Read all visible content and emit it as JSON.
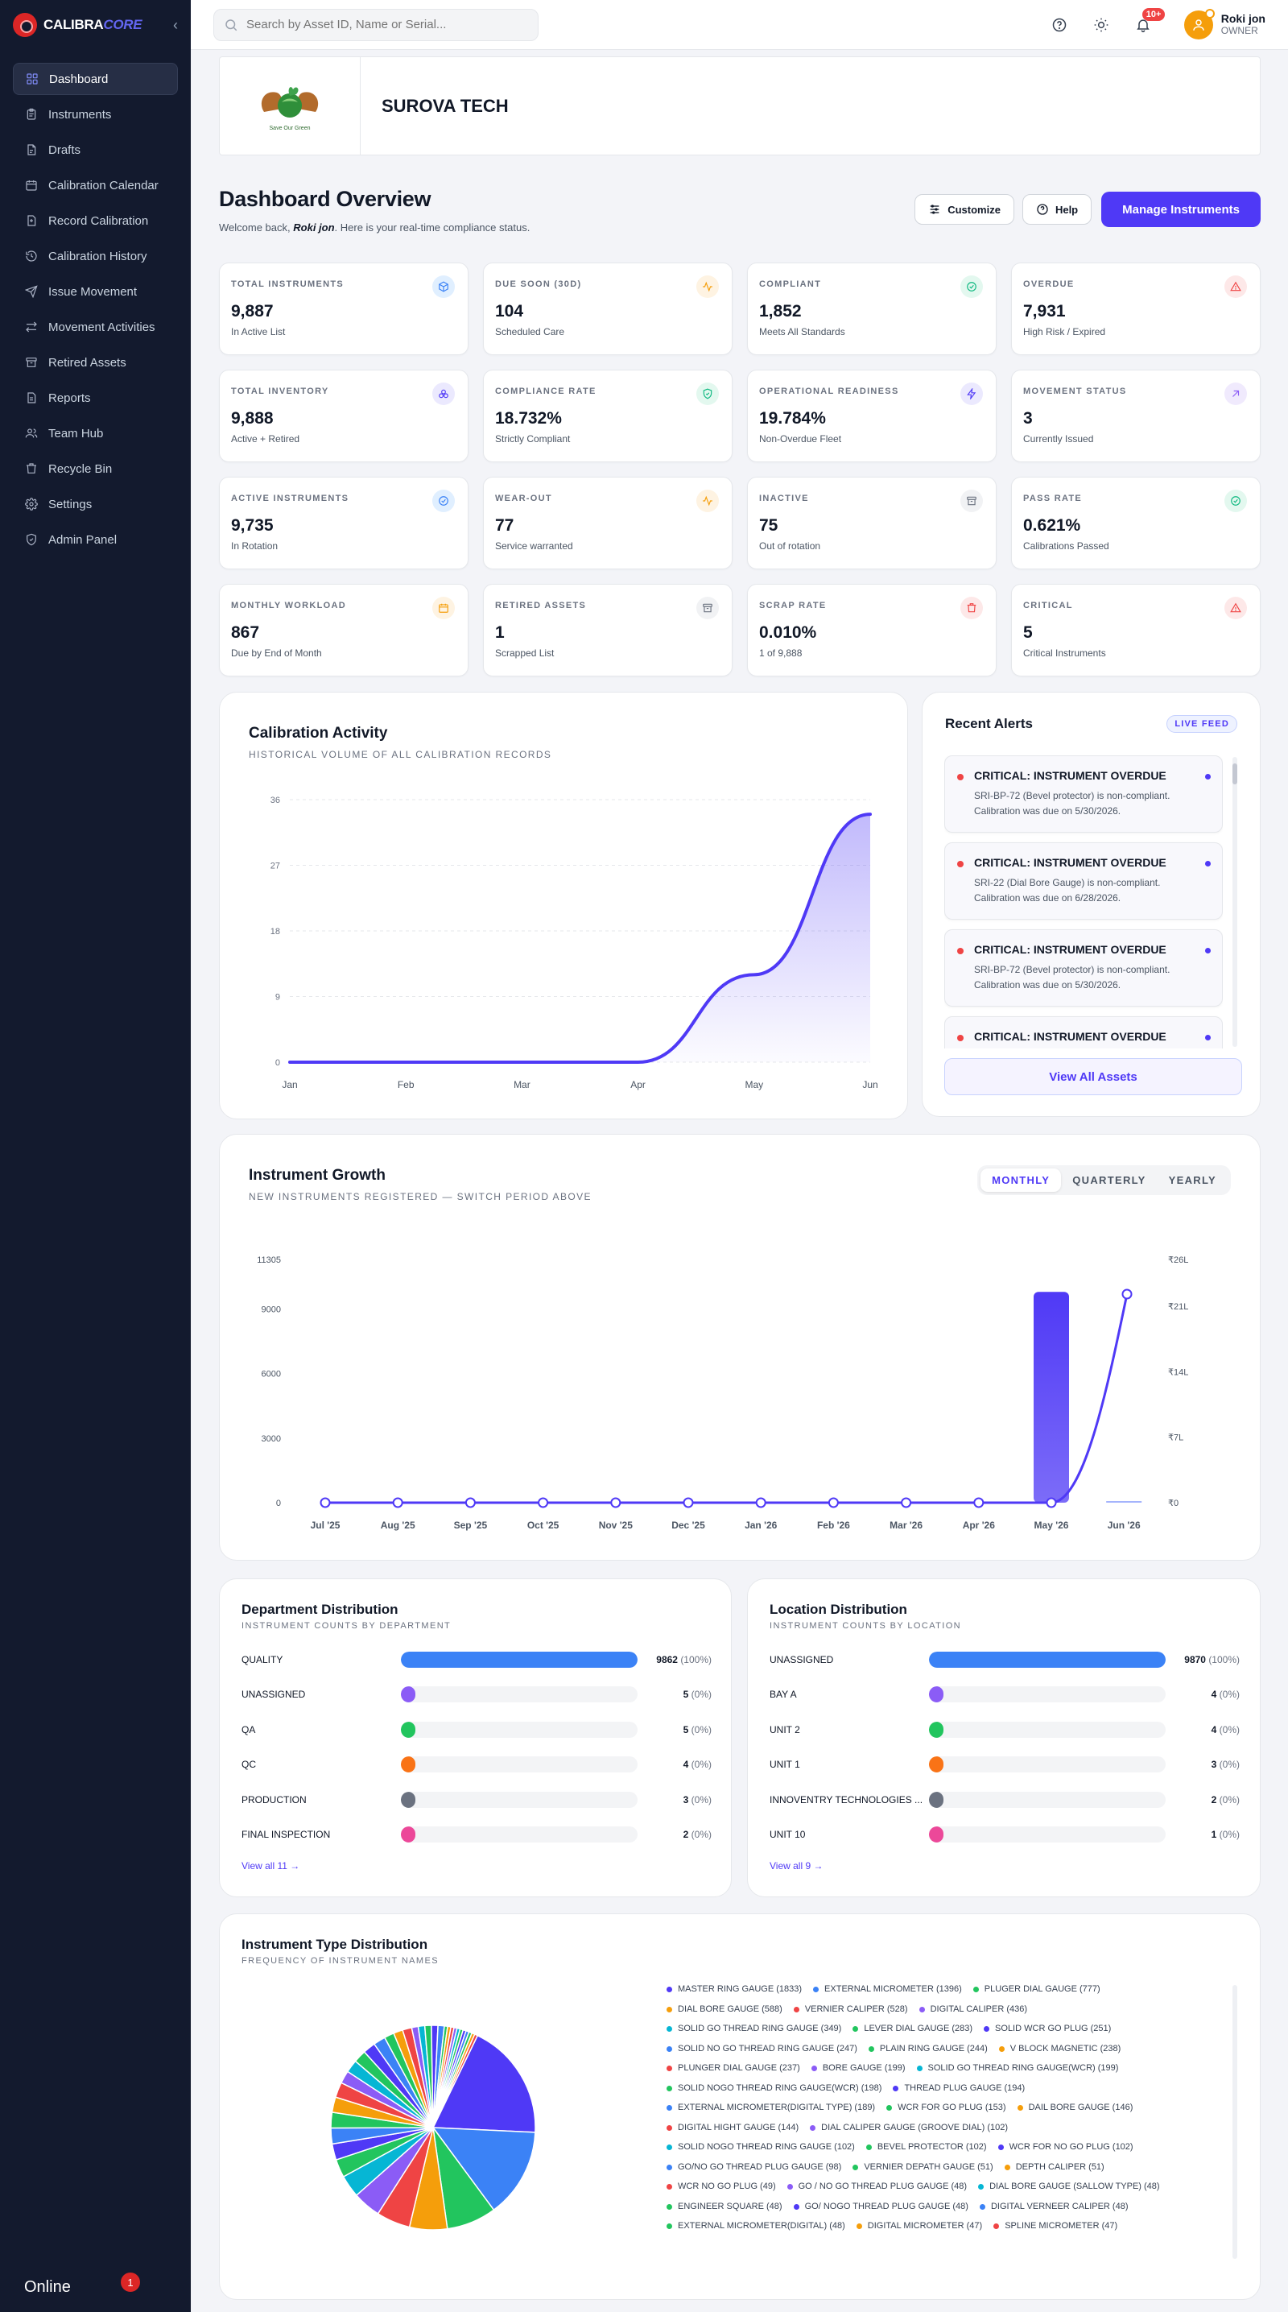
{
  "brand": {
    "name_main": "CALIBRA",
    "name_accent": "CORE"
  },
  "sidebar": {
    "items": [
      {
        "label": "Dashboard",
        "icon": "dashboard-icon"
      },
      {
        "label": "Instruments",
        "icon": "clipboard-icon"
      },
      {
        "label": "Drafts",
        "icon": "draft-icon"
      },
      {
        "label": "Calibration Calendar",
        "icon": "calendar-icon"
      },
      {
        "label": "Record Calibration",
        "icon": "record-icon"
      },
      {
        "label": "Calibration History",
        "icon": "history-icon"
      },
      {
        "label": "Issue Movement",
        "icon": "send-icon"
      },
      {
        "label": "Movement Activities",
        "icon": "swap-icon"
      },
      {
        "label": "Retired Assets",
        "icon": "archive-icon"
      },
      {
        "label": "Reports",
        "icon": "report-icon"
      },
      {
        "label": "Team Hub",
        "icon": "team-icon"
      },
      {
        "label": "Recycle Bin",
        "icon": "trash-icon"
      },
      {
        "label": "Settings",
        "icon": "gear-icon"
      },
      {
        "label": "Admin Panel",
        "icon": "shield-icon"
      }
    ],
    "footer_status": "Online",
    "footer_badge": "1"
  },
  "topbar": {
    "search_placeholder": "Search by Asset ID, Name or Serial...",
    "notif_badge": "10+",
    "user_name": "Roki jon",
    "user_role": "OWNER"
  },
  "company": {
    "name": "SUROVA TECH",
    "logo_caption": "Save Our Green"
  },
  "overview": {
    "title": "Dashboard Overview",
    "welcome_prefix": "Welcome back,",
    "welcome_name": "Roki jon",
    "welcome_suffix": ". Here is your real-time compliance status.",
    "customize_label": "Customize",
    "help_label": "Help",
    "manage_label": "Manage Instruments"
  },
  "stats": [
    {
      "label": "TOTAL INSTRUMENTS",
      "value": "9,887",
      "sub": "In Active List",
      "icon": "cube-icon",
      "color": "#3b82f6",
      "bg": "#e0efff"
    },
    {
      "label": "DUE SOON (30D)",
      "value": "104",
      "sub": "Scheduled Care",
      "icon": "pulse-icon",
      "color": "#f59e0b",
      "bg": "#fef3e2"
    },
    {
      "label": "COMPLIANT",
      "value": "1,852",
      "sub": "Meets All Standards",
      "icon": "check-circle-icon",
      "color": "#10b981",
      "bg": "#e3f8ef"
    },
    {
      "label": "OVERDUE",
      "value": "7,931",
      "sub": "High Risk / Expired",
      "icon": "warning-icon",
      "color": "#ef4444",
      "bg": "#fde8e8"
    },
    {
      "label": "TOTAL INVENTORY",
      "value": "9,888",
      "sub": "Active + Retired",
      "icon": "layers-icon",
      "color": "#4f39f6",
      "bg": "#ebe9fe"
    },
    {
      "label": "COMPLIANCE RATE",
      "value": "18.732%",
      "sub": "Strictly Compliant",
      "icon": "shield-check-icon",
      "color": "#10b981",
      "bg": "#e3f8ef"
    },
    {
      "label": "OPERATIONAL READINESS",
      "value": "19.784%",
      "sub": "Non-Overdue Fleet",
      "icon": "bolt-icon",
      "color": "#4f39f6",
      "bg": "#ebe9fe"
    },
    {
      "label": "MOVEMENT STATUS",
      "value": "3",
      "sub": "Currently Issued",
      "icon": "arrow-up-right-icon",
      "color": "#8b5cf6",
      "bg": "#f0eafd"
    },
    {
      "label": "ACTIVE INSTRUMENTS",
      "value": "9,735",
      "sub": "In Rotation",
      "icon": "check-circle-icon",
      "color": "#3b82f6",
      "bg": "#e0efff"
    },
    {
      "label": "WEAR-OUT",
      "value": "77",
      "sub": "Service warranted",
      "icon": "pulse-icon",
      "color": "#f59e0b",
      "bg": "#fef3e2"
    },
    {
      "label": "INACTIVE",
      "value": "75",
      "sub": "Out of rotation",
      "icon": "archive-icon",
      "color": "#6b7280",
      "bg": "#f1f2f4"
    },
    {
      "label": "PASS RATE",
      "value": "0.621%",
      "sub": "Calibrations Passed",
      "icon": "check-circle-icon",
      "color": "#10b981",
      "bg": "#e3f8ef"
    },
    {
      "label": "MONTHLY WORKLOAD",
      "value": "867",
      "sub": "Due by End of Month",
      "icon": "calendar-icon",
      "color": "#f59e0b",
      "bg": "#fef3e2"
    },
    {
      "label": "RETIRED ASSETS",
      "value": "1",
      "sub": "Scrapped List",
      "icon": "archive-icon",
      "color": "#6b7280",
      "bg": "#f1f2f4"
    },
    {
      "label": "SCRAP RATE",
      "value": "0.010%",
      "sub": "1 of 9,888",
      "icon": "trash-icon",
      "color": "#ef4444",
      "bg": "#fde8e8"
    },
    {
      "label": "CRITICAL",
      "value": "5",
      "sub": "Critical Instruments",
      "icon": "warning-icon",
      "color": "#ef4444",
      "bg": "#fde8e8"
    }
  ],
  "calibration_activity": {
    "title": "Calibration Activity",
    "subtitle": "HISTORICAL VOLUME OF ALL CALIBRATION RECORDS"
  },
  "alerts": {
    "title": "Recent Alerts",
    "badge": "LIVE FEED",
    "items": [
      {
        "title": "CRITICAL: INSTRUMENT OVERDUE",
        "body": "SRI-BP-72 (Bevel protector) is non-compliant. Calibration was due on 5/30/2026."
      },
      {
        "title": "CRITICAL: INSTRUMENT OVERDUE",
        "body": "SRI-22 (Dial Bore Gauge) is non-compliant. Calibration was due on 6/28/2026."
      },
      {
        "title": "CRITICAL: INSTRUMENT OVERDUE",
        "body": "SRI-BP-72 (Bevel protector) is non-compliant. Calibration was due on 5/30/2026."
      },
      {
        "title": "CRITICAL: INSTRUMENT OVERDUE",
        "body": ""
      }
    ],
    "view_all": "View All Assets"
  },
  "growth": {
    "title": "Instrument Growth",
    "subtitle": "NEW INSTRUMENTS REGISTERED — SWITCH PERIOD ABOVE",
    "periods": [
      "MONTHLY",
      "QUARTERLY",
      "YEARLY"
    ],
    "active_period": "MONTHLY"
  },
  "department": {
    "title": "Department Distribution",
    "subtitle": "INSTRUMENT COUNTS BY DEPARTMENT",
    "rows": [
      {
        "name": "QUALITY",
        "value": "9862",
        "pct": "(100%)",
        "fill": 1.0,
        "color": "#3b82f6"
      },
      {
        "name": "UNASSIGNED",
        "value": "5",
        "pct": "(0%)",
        "fill": 0.0,
        "color": "#8b5cf6"
      },
      {
        "name": "QA",
        "value": "5",
        "pct": "(0%)",
        "fill": 0.0,
        "color": "#22c55e"
      },
      {
        "name": "QC",
        "value": "4",
        "pct": "(0%)",
        "fill": 0.0,
        "color": "#f97316"
      },
      {
        "name": "PRODUCTION",
        "value": "3",
        "pct": "(0%)",
        "fill": 0.0,
        "color": "#6b7280"
      },
      {
        "name": "FINAL INSPECTION",
        "value": "2",
        "pct": "(0%)",
        "fill": 0.0,
        "color": "#ec4899"
      }
    ],
    "view_all": "View all 11 →"
  },
  "location": {
    "title": "Location Distribution",
    "subtitle": "INSTRUMENT COUNTS BY LOCATION",
    "rows": [
      {
        "name": "UNASSIGNED",
        "value": "9870",
        "pct": "(100%)",
        "fill": 1.0,
        "color": "#3b82f6"
      },
      {
        "name": "BAY A",
        "value": "4",
        "pct": "(0%)",
        "fill": 0.0,
        "color": "#8b5cf6"
      },
      {
        "name": "UNIT 2",
        "value": "4",
        "pct": "(0%)",
        "fill": 0.0,
        "color": "#22c55e"
      },
      {
        "name": "UNIT 1",
        "value": "3",
        "pct": "(0%)",
        "fill": 0.0,
        "color": "#f97316"
      },
      {
        "name": "INNOVENTRY TECHNOLOGIES ...",
        "value": "2",
        "pct": "(0%)",
        "fill": 0.0,
        "color": "#6b7280"
      },
      {
        "name": "UNIT 10",
        "value": "1",
        "pct": "(0%)",
        "fill": 0.0,
        "color": "#ec4899"
      }
    ],
    "view_all": "View all 9 →"
  },
  "instrument_type": {
    "title": "Instrument Type Distribution",
    "subtitle": "FREQUENCY OF INSTRUMENT NAMES",
    "legend_lines": [
      [
        {
          "label": "MASTER RING GAUGE (1833)",
          "color": "#4f39f6"
        },
        {
          "label": "EXTERNAL MICROMETER (1396)",
          "color": "#3b82f6"
        },
        {
          "label": "PLUGER DIAL GAUGE (777)",
          "color": "#22c55e"
        }
      ],
      [
        {
          "label": "DIAL BORE GAUGE (588)",
          "color": "#f59e0b"
        },
        {
          "label": "VERNIER CALIPER (528)",
          "color": "#ef4444"
        },
        {
          "label": "DIGITAL CALIPER (436)",
          "color": "#8b5cf6"
        }
      ],
      [
        {
          "label": "SOLID GO THREAD RING GAUGE (349)",
          "color": "#06b6d4"
        },
        {
          "label": "LEVER DIAL GAUGE (283)",
          "color": "#22c55e"
        },
        {
          "label": "SOLID WCR GO PLUG (251)",
          "color": "#4f39f6"
        }
      ],
      [
        {
          "label": "SOLID NO GO THREAD RING GAUGE (247)",
          "color": "#3b82f6"
        },
        {
          "label": "PLAIN RING GAUGE (244)",
          "color": "#22c55e"
        },
        {
          "label": "V BLOCK MAGNETIC (238)",
          "color": "#f59e0b"
        }
      ],
      [
        {
          "label": "PLUNGER DIAL GAUGE (237)",
          "color": "#ef4444"
        },
        {
          "label": "BORE GAUGE (199)",
          "color": "#8b5cf6"
        },
        {
          "label": "SOLID GO THREAD RING GAUGE(WCR) (199)",
          "color": "#06b6d4"
        }
      ],
      [
        {
          "label": "SOLID NOGO THREAD RING GAUGE(WCR) (198)",
          "color": "#22c55e"
        },
        {
          "label": "THREAD PLUG GAUGE (194)",
          "color": "#4f39f6"
        }
      ],
      [
        {
          "label": "EXTERNAL MICROMETER(DIGITAL TYPE) (189)",
          "color": "#3b82f6"
        },
        {
          "label": "WCR FOR GO PLUG (153)",
          "color": "#22c55e"
        },
        {
          "label": "DAIL BORE GAUGE (146)",
          "color": "#f59e0b"
        }
      ],
      [
        {
          "label": "DIGITAL HIGHT GAUGE (144)",
          "color": "#ef4444"
        },
        {
          "label": "DIAL CALIPER GAUGE (GROOVE DIAL) (102)",
          "color": "#8b5cf6"
        }
      ],
      [
        {
          "label": "SOLID NOGO THREAD RING GAUGE (102)",
          "color": "#06b6d4"
        },
        {
          "label": "BEVEL PROTECTOR (102)",
          "color": "#22c55e"
        },
        {
          "label": "WCR FOR NO GO PLUG (102)",
          "color": "#4f39f6"
        }
      ],
      [
        {
          "label": "GO/NO GO THREAD PLUG GAUGE (98)",
          "color": "#3b82f6"
        },
        {
          "label": "VERNIER DEPATH GAUGE (51)",
          "color": "#22c55e"
        },
        {
          "label": "DEPTH CALIPER (51)",
          "color": "#f59e0b"
        }
      ],
      [
        {
          "label": "WCR NO GO PLUG (49)",
          "color": "#ef4444"
        },
        {
          "label": "GO / NO GO THREAD PLUG GAUGE (48)",
          "color": "#8b5cf6"
        },
        {
          "label": "DIAL BORE GAUGE (SALLOW TYPE) (48)",
          "color": "#06b6d4"
        }
      ],
      [
        {
          "label": "ENGINEER SQUARE (48)",
          "color": "#22c55e"
        },
        {
          "label": "GO/ NOGO THREAD PLUG GAUGE (48)",
          "color": "#4f39f6"
        },
        {
          "label": "DIGITAL VERNEER CALIPER (48)",
          "color": "#3b82f6"
        }
      ],
      [
        {
          "label": "EXTERNAL MICROMETER(DIGITAL) (48)",
          "color": "#22c55e"
        },
        {
          "label": "DIGITAL MICROMETER (47)",
          "color": "#f59e0b"
        },
        {
          "label": "SPLINE MICROMETER (47)",
          "color": "#ef4444"
        }
      ]
    ]
  },
  "chart_data": [
    {
      "type": "area",
      "x": [
        "Jan",
        "Feb",
        "Mar",
        "Apr",
        "May",
        "Jun"
      ],
      "y": [
        0,
        0,
        0,
        0,
        12,
        34
      ],
      "yticks": [
        0,
        9,
        18,
        27,
        36
      ],
      "ylim": [
        0,
        36
      ],
      "color": "#4f39f6",
      "grid": true
    },
    {
      "type": "bar",
      "categories": [
        "Jul '25",
        "Aug '25",
        "Sep '25",
        "Oct '25",
        "Nov '25",
        "Dec '25",
        "Jan '26",
        "Feb '26",
        "Mar '26",
        "Apr '26",
        "May '26",
        "Jun '26"
      ],
      "bars": [
        0,
        0,
        0,
        0,
        0,
        0,
        0,
        0,
        0,
        0,
        9800,
        0
      ],
      "line": [
        0,
        0,
        0,
        0,
        0,
        0,
        0,
        0,
        0,
        0,
        0,
        24500
      ],
      "yticks_left": [
        0,
        3000,
        6000,
        9000,
        11305
      ],
      "ylim_left": [
        0,
        11305
      ],
      "yticks_right": [
        "₹0",
        "₹7L",
        "₹14L",
        "₹21L",
        "₹26L"
      ],
      "ylim_right_lakh": [
        0,
        26
      ],
      "color": "#4f39f6"
    },
    {
      "type": "pie",
      "labels": [
        "MASTER RING GAUGE",
        "EXTERNAL MICROMETER",
        "PLUGER DIAL GAUGE",
        "DIAL BORE GAUGE",
        "VERNIER CALIPER",
        "DIGITAL CALIPER",
        "SOLID GO THREAD RING GAUGE",
        "LEVER DIAL GAUGE",
        "SOLID WCR GO PLUG",
        "SOLID NO GO THREAD RING GAUGE",
        "PLAIN RING GAUGE",
        "V BLOCK MAGNETIC",
        "PLUNGER DIAL GAUGE",
        "BORE GAUGE",
        "SOLID GO THREAD RING GAUGE(WCR)",
        "SOLID NOGO THREAD RING GAUGE(WCR)",
        "THREAD PLUG GAUGE",
        "EXTERNAL MICROMETER(DIGITAL TYPE)",
        "WCR FOR GO PLUG",
        "DAIL BORE GAUGE",
        "DIGITAL HIGHT GAUGE",
        "DIAL CALIPER GAUGE (GROOVE DIAL)",
        "SOLID NOGO THREAD RING GAUGE",
        "BEVEL PROTECTOR",
        "WCR FOR NO GO PLUG",
        "GO/NO GO THREAD PLUG GAUGE",
        "VERNIER DEPATH GAUGE",
        "DEPTH CALIPER",
        "WCR NO GO PLUG",
        "GO / NO GO THREAD PLUG GAUGE",
        "DIAL BORE GAUGE (SALLOW TYPE)",
        "ENGINEER SQUARE",
        "GO/ NOGO THREAD PLUG GAUGE",
        "DIGITAL VERNEER CALIPER",
        "EXTERNAL MICROMETER(DIGITAL)",
        "DIGITAL MICROMETER",
        "SPLINE MICROMETER"
      ],
      "values": [
        1833,
        1396,
        777,
        588,
        528,
        436,
        349,
        283,
        251,
        247,
        244,
        238,
        237,
        199,
        199,
        198,
        194,
        189,
        153,
        146,
        144,
        102,
        102,
        102,
        102,
        98,
        51,
        51,
        49,
        48,
        48,
        48,
        48,
        48,
        48,
        47,
        47
      ],
      "colors": [
        "#4f39f6",
        "#3b82f6",
        "#22c55e",
        "#f59e0b",
        "#ef4444",
        "#8b5cf6",
        "#06b6d4",
        "#22c55e",
        "#4f39f6",
        "#3b82f6",
        "#22c55e",
        "#f59e0b",
        "#ef4444",
        "#8b5cf6",
        "#06b6d4",
        "#22c55e",
        "#4f39f6",
        "#3b82f6",
        "#22c55e",
        "#f59e0b",
        "#ef4444",
        "#8b5cf6",
        "#06b6d4",
        "#22c55e",
        "#4f39f6",
        "#3b82f6",
        "#22c55e",
        "#f59e0b",
        "#ef4444",
        "#8b5cf6",
        "#06b6d4",
        "#22c55e",
        "#4f39f6",
        "#3b82f6",
        "#22c55e",
        "#f59e0b",
        "#ef4444"
      ]
    }
  ]
}
